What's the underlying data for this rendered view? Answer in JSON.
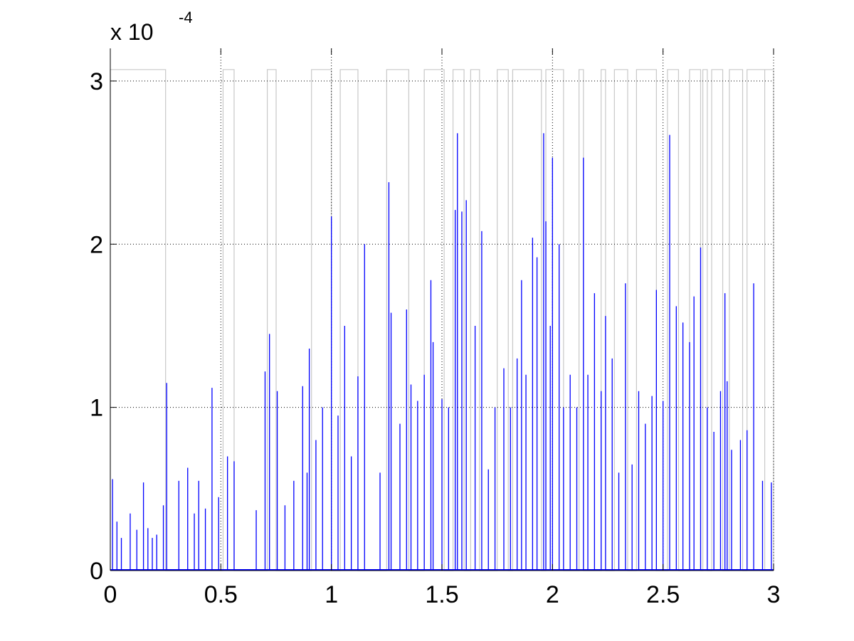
{
  "chart_data": {
    "type": "line",
    "title": "",
    "xlabel": "",
    "ylabel": "",
    "xlim": [
      0,
      3
    ],
    "ylim": [
      0,
      3.2
    ],
    "y_multiplier_label": "x 10",
    "y_multiplier_exponent": "-4",
    "x_ticks": [
      0,
      0.5,
      1,
      1.5,
      2,
      2.5,
      3
    ],
    "x_tick_labels": [
      "0",
      "0.5",
      "1",
      "1.5",
      "2",
      "2.5",
      "3"
    ],
    "y_ticks": [
      0,
      1,
      2,
      3
    ],
    "y_tick_labels": [
      "0",
      "1",
      "2",
      "3"
    ],
    "grid": true,
    "colors": {
      "signal": "#0000ff",
      "indicator": "#c8c8c8",
      "grid": "#000000"
    },
    "indicator_level": 3.07,
    "indicator_intervals": [
      [
        0.0,
        0.25
      ],
      [
        0.51,
        0.56
      ],
      [
        0.71,
        0.75
      ],
      [
        0.91,
        1.0
      ],
      [
        1.04,
        1.12
      ],
      [
        1.25,
        1.35
      ],
      [
        1.42,
        1.51
      ],
      [
        1.55,
        1.6
      ],
      [
        1.63,
        1.67
      ],
      [
        1.75,
        1.8
      ],
      [
        1.82,
        1.95
      ],
      [
        1.97,
        2.05
      ],
      [
        2.12,
        2.14
      ],
      [
        2.22,
        2.24
      ],
      [
        2.28,
        2.34
      ],
      [
        2.38,
        2.47
      ],
      [
        2.52,
        2.57
      ],
      [
        2.62,
        2.67
      ],
      [
        2.68,
        2.7
      ],
      [
        2.72,
        2.77
      ],
      [
        2.8,
        2.86
      ],
      [
        2.88,
        2.96
      ],
      [
        2.96,
        3.0
      ]
    ],
    "series": [
      {
        "type": "spikes",
        "x": [
          0.01,
          0.03,
          0.05,
          0.09,
          0.12,
          0.15,
          0.17,
          0.19,
          0.21,
          0.24,
          0.255,
          0.31,
          0.35,
          0.38,
          0.4,
          0.43,
          0.46,
          0.49,
          0.53,
          0.56,
          0.66,
          0.7,
          0.72,
          0.755,
          0.79,
          0.83,
          0.87,
          0.89,
          0.9,
          0.93,
          0.96,
          1.0,
          1.03,
          1.06,
          1.09,
          1.12,
          1.15,
          1.22,
          1.26,
          1.27,
          1.31,
          1.34,
          1.36,
          1.39,
          1.42,
          1.45,
          1.46,
          1.5,
          1.53,
          1.56,
          1.57,
          1.59,
          1.61,
          1.65,
          1.68,
          1.71,
          1.74,
          1.78,
          1.81,
          1.84,
          1.86,
          1.88,
          1.91,
          1.93,
          1.96,
          1.97,
          1.99,
          2.0,
          2.03,
          2.05,
          2.08,
          2.11,
          2.14,
          2.16,
          2.19,
          2.22,
          2.24,
          2.27,
          2.3,
          2.33,
          2.36,
          2.39,
          2.42,
          2.45,
          2.47,
          2.5,
          2.53,
          2.56,
          2.59,
          2.62,
          2.64,
          2.67,
          2.7,
          2.73,
          2.76,
          2.78,
          2.79,
          2.81,
          2.85,
          2.88,
          2.91,
          2.95,
          2.99
        ],
        "y": [
          0.56,
          0.3,
          0.2,
          0.35,
          0.25,
          0.54,
          0.26,
          0.2,
          0.22,
          0.4,
          1.15,
          0.55,
          0.63,
          0.35,
          0.55,
          0.38,
          1.12,
          0.45,
          0.7,
          0.67,
          0.37,
          1.22,
          1.45,
          1.1,
          0.4,
          0.55,
          1.13,
          0.6,
          1.36,
          0.8,
          1.0,
          2.17,
          0.95,
          1.5,
          0.7,
          1.19,
          2.0,
          0.6,
          2.38,
          1.58,
          0.9,
          1.6,
          1.14,
          1.04,
          1.2,
          1.78,
          1.4,
          1.05,
          1.0,
          2.21,
          2.68,
          2.2,
          2.27,
          1.5,
          2.08,
          0.62,
          1.0,
          1.24,
          1.0,
          1.3,
          1.78,
          1.2,
          2.04,
          1.92,
          2.68,
          2.14,
          1.5,
          2.53,
          2.0,
          1.0,
          1.2,
          1.0,
          2.53,
          1.2,
          1.7,
          1.1,
          1.56,
          1.3,
          0.6,
          1.76,
          0.65,
          1.1,
          0.9,
          1.07,
          1.72,
          1.04,
          2.67,
          1.62,
          1.52,
          1.4,
          1.68,
          1.98,
          1.0,
          0.85,
          1.1,
          1.7,
          1.16,
          0.74,
          0.8,
          0.86,
          1.76,
          0.55,
          0.54
        ]
      }
    ]
  }
}
